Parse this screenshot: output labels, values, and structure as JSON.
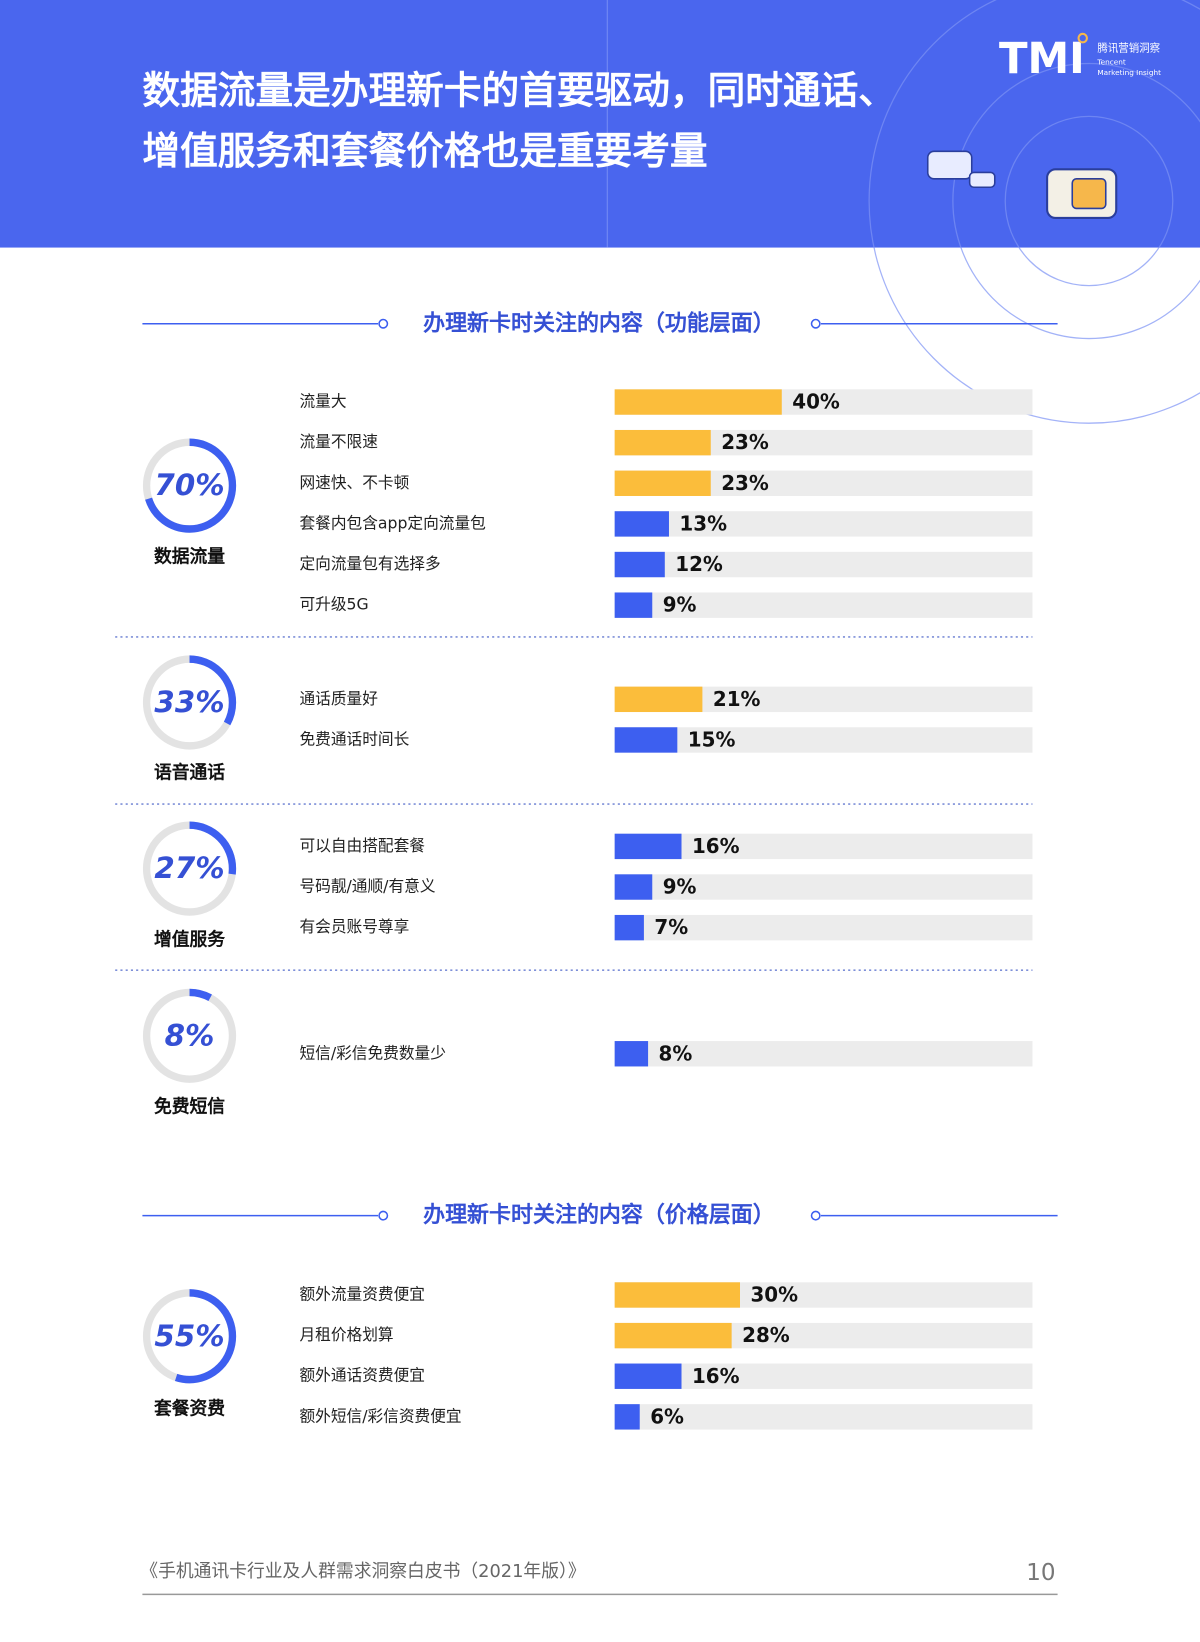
{
  "header": {
    "title_lines": [
      "数据流量是办理新卡的首要驱动，同时通话、",
      "增值服务和套餐价格也是重要考量"
    ],
    "logo": "TMI",
    "logo_cn": "腾讯营销洞察",
    "logo_en_lines": [
      "Tencent",
      "Marketing Insight"
    ]
  },
  "sections": [
    {
      "heading": "办理新卡时关注的内容（功能层面）",
      "charts": [
        {
          "type": "bar",
          "title": "数据流量",
          "donut": {
            "value": 70,
            "label": "70%"
          },
          "categories": [
            "流量大",
            "流量不限速",
            "网速快、不卡顿",
            "套餐内包含app定向流量包",
            "定向流量包有选择多",
            "可升级5G"
          ],
          "values": [
            40,
            23,
            23,
            13,
            12,
            9
          ],
          "value_labels": [
            "40%",
            "23%",
            "23%",
            "13%",
            "12%",
            "9%"
          ],
          "colors": [
            "#fbbd3b",
            "#fbbd3b",
            "#fbbd3b",
            "#3d5ff0",
            "#3d5ff0",
            "#3d5ff0"
          ],
          "xlim": [
            0,
            100
          ]
        },
        {
          "type": "bar",
          "title": "语音通话",
          "donut": {
            "value": 33,
            "label": "33%"
          },
          "categories": [
            "通话质量好",
            "免费通话时间长"
          ],
          "values": [
            21,
            15
          ],
          "value_labels": [
            "21%",
            "15%"
          ],
          "colors": [
            "#fbbd3b",
            "#3d5ff0"
          ],
          "xlim": [
            0,
            100
          ]
        },
        {
          "type": "bar",
          "title": "增值服务",
          "donut": {
            "value": 27,
            "label": "27%"
          },
          "categories": [
            "可以自由搭配套餐",
            "号码靓/通顺/有意义",
            "有会员账号尊享"
          ],
          "values": [
            16,
            9,
            7
          ],
          "value_labels": [
            "16%",
            "9%",
            "7%"
          ],
          "colors": [
            "#3d5ff0",
            "#3d5ff0",
            "#3d5ff0"
          ],
          "xlim": [
            0,
            100
          ]
        },
        {
          "type": "bar",
          "title": "免费短信",
          "donut": {
            "value": 8,
            "label": "8%"
          },
          "categories": [
            "短信/彩信免费数量少"
          ],
          "values": [
            8
          ],
          "value_labels": [
            "8%"
          ],
          "colors": [
            "#3d5ff0"
          ],
          "xlim": [
            0,
            100
          ]
        }
      ]
    },
    {
      "heading": "办理新卡时关注的内容（价格层面）",
      "charts": [
        {
          "type": "bar",
          "title": "套餐资费",
          "donut": {
            "value": 55,
            "label": "55%"
          },
          "categories": [
            "额外流量资费便宜",
            "月租价格划算",
            "额外通话资费便宜",
            "额外短信/彩信资费便宜"
          ],
          "values": [
            30,
            28,
            16,
            6
          ],
          "value_labels": [
            "30%",
            "28%",
            "16%",
            "6%"
          ],
          "colors": [
            "#fbbd3b",
            "#fbbd3b",
            "#3d5ff0",
            "#3d5ff0"
          ],
          "xlim": [
            0,
            100
          ]
        }
      ]
    }
  ],
  "footer": {
    "text": "《手机通讯卡行业及人群需求洞察白皮书（2021年版）》",
    "page": 10
  }
}
